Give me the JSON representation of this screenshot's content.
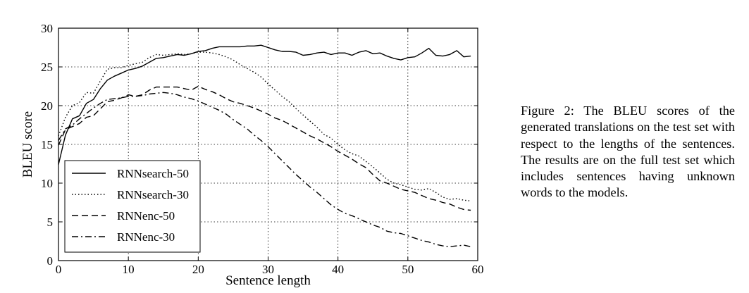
{
  "caption": "Figure 2: The BLEU scores of the generated translations on the test set with respect to the lengths of the sentences. The results are on the full test set which includes sentences having unknown words to the models.",
  "chart_data": {
    "type": "line",
    "title": "",
    "xlabel": "Sentence length",
    "ylabel": "BLEU score",
    "xlim": [
      0,
      60
    ],
    "ylim": [
      0,
      30
    ],
    "xticks": [
      0,
      10,
      20,
      30,
      40,
      50,
      60
    ],
    "yticks": [
      0,
      5,
      10,
      15,
      20,
      25,
      30
    ],
    "grid": true,
    "legend_position": "bottom-left",
    "series": [
      {
        "name": "RNNsearch-50",
        "linestyle": "solid",
        "x": [
          0,
          1,
          2,
          3,
          4,
          5,
          6,
          7,
          8,
          9,
          10,
          11,
          12,
          13,
          14,
          15,
          16,
          17,
          18,
          19,
          20,
          21,
          22,
          23,
          24,
          25,
          26,
          27,
          28,
          29,
          30,
          31,
          32,
          33,
          34,
          35,
          36,
          37,
          38,
          39,
          40,
          41,
          42,
          43,
          44,
          45,
          46,
          47,
          48,
          49,
          50,
          51,
          52,
          53,
          54,
          55,
          56,
          57,
          58,
          59
        ],
        "y": [
          12.4,
          16.2,
          18.3,
          18.7,
          20.3,
          20.8,
          22.2,
          23.3,
          23.8,
          24.2,
          24.6,
          24.8,
          25.1,
          25.6,
          26.1,
          26.2,
          26.4,
          26.6,
          26.5,
          26.7,
          27.0,
          27.1,
          27.4,
          27.6,
          27.6,
          27.6,
          27.6,
          27.7,
          27.7,
          27.8,
          27.5,
          27.2,
          27.0,
          27.0,
          26.9,
          26.5,
          26.6,
          26.8,
          26.9,
          26.6,
          26.8,
          26.8,
          26.5,
          26.9,
          27.1,
          26.7,
          26.8,
          26.4,
          26.1,
          25.9,
          26.2,
          26.3,
          26.8,
          27.4,
          26.5,
          26.4,
          26.6,
          27.1,
          26.3,
          26.4
        ]
      },
      {
        "name": "RNNsearch-30",
        "linestyle": "dotted",
        "x": [
          0,
          1,
          2,
          3,
          4,
          5,
          6,
          7,
          8,
          9,
          10,
          11,
          12,
          13,
          14,
          15,
          16,
          17,
          18,
          19,
          20,
          21,
          22,
          23,
          24,
          25,
          26,
          27,
          28,
          29,
          30,
          31,
          32,
          33,
          34,
          35,
          36,
          37,
          38,
          39,
          40,
          41,
          42,
          43,
          44,
          45,
          46,
          47,
          48,
          49,
          50,
          51,
          52,
          53,
          54,
          55,
          56,
          57,
          58,
          59
        ],
        "y": [
          16.1,
          18.5,
          20.0,
          20.4,
          21.7,
          21.6,
          23.2,
          24.7,
          24.9,
          24.9,
          25.2,
          25.4,
          25.6,
          26.2,
          26.6,
          26.5,
          26.6,
          26.7,
          26.6,
          26.7,
          26.9,
          26.9,
          26.8,
          26.6,
          26.3,
          25.9,
          25.3,
          24.8,
          24.3,
          23.7,
          22.8,
          22.0,
          21.2,
          20.5,
          19.6,
          18.8,
          18.0,
          17.2,
          16.3,
          15.8,
          15.0,
          14.3,
          13.8,
          13.5,
          12.8,
          12.1,
          11.3,
          10.5,
          10.0,
          9.8,
          9.5,
          9.2,
          9.1,
          9.3,
          8.8,
          8.2,
          7.9,
          8.0,
          7.8,
          7.7
        ]
      },
      {
        "name": "RNNenc-50",
        "linestyle": "dashed",
        "x": [
          0,
          1,
          2,
          3,
          4,
          5,
          6,
          7,
          8,
          9,
          10,
          11,
          12,
          13,
          14,
          15,
          16,
          17,
          18,
          19,
          20,
          21,
          22,
          23,
          24,
          25,
          26,
          27,
          28,
          29,
          30,
          31,
          32,
          33,
          34,
          35,
          36,
          37,
          38,
          39,
          40,
          41,
          42,
          43,
          44,
          45,
          46,
          47,
          48,
          49,
          50,
          51,
          52,
          53,
          54,
          55,
          56,
          57,
          58,
          59
        ],
        "y": [
          14.9,
          16.9,
          17.3,
          17.7,
          18.5,
          18.7,
          19.6,
          20.5,
          20.7,
          21.0,
          21.4,
          21.2,
          21.4,
          22.0,
          22.4,
          22.4,
          22.4,
          22.4,
          22.2,
          22.0,
          22.5,
          22.1,
          21.8,
          21.4,
          20.9,
          20.5,
          20.3,
          20.0,
          19.7,
          19.3,
          18.9,
          18.4,
          18.1,
          17.6,
          17.1,
          16.6,
          16.1,
          15.7,
          15.2,
          14.7,
          14.1,
          13.6,
          13.1,
          12.5,
          12.0,
          11.1,
          10.3,
          10.0,
          9.6,
          9.2,
          9.0,
          8.8,
          8.4,
          8.0,
          7.8,
          7.5,
          7.3,
          6.9,
          6.6,
          6.5
        ]
      },
      {
        "name": "RNNenc-30",
        "linestyle": "dashdot",
        "x": [
          0,
          1,
          2,
          3,
          4,
          5,
          6,
          7,
          8,
          9,
          10,
          11,
          12,
          13,
          14,
          15,
          16,
          17,
          18,
          19,
          20,
          21,
          22,
          23,
          24,
          25,
          26,
          27,
          28,
          29,
          30,
          31,
          32,
          33,
          34,
          35,
          36,
          37,
          38,
          39,
          40,
          41,
          42,
          43,
          44,
          45,
          46,
          47,
          48,
          49,
          50,
          51,
          52,
          53,
          54,
          55,
          56,
          57,
          58,
          59
        ],
        "y": [
          15.5,
          17.0,
          17.5,
          18.3,
          19.0,
          19.7,
          20.3,
          20.8,
          20.9,
          21.0,
          21.2,
          21.2,
          21.3,
          21.5,
          21.6,
          21.7,
          21.6,
          21.4,
          21.1,
          20.9,
          20.6,
          20.2,
          19.8,
          19.4,
          18.9,
          18.2,
          17.6,
          17.0,
          16.2,
          15.5,
          14.7,
          13.8,
          12.9,
          12.0,
          11.1,
          10.3,
          9.5,
          8.8,
          8.0,
          7.2,
          6.6,
          6.1,
          5.8,
          5.4,
          5.0,
          4.6,
          4.3,
          3.8,
          3.6,
          3.5,
          3.2,
          2.9,
          2.6,
          2.4,
          2.1,
          1.9,
          1.8,
          1.9,
          2.0,
          1.8
        ]
      }
    ]
  }
}
